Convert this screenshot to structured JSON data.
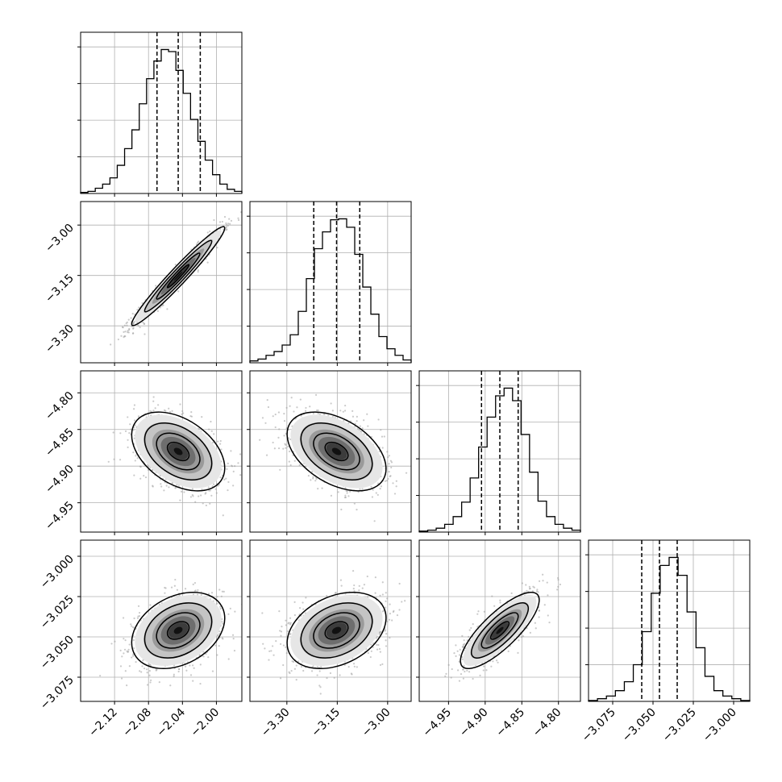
{
  "chart_data": {
    "type": "corner",
    "parameters": [
      {
        "index": 0,
        "range": [
          -2.16,
          -1.97
        ],
        "ticks": [
          -2.12,
          -2.08,
          -2.04,
          -2.0
        ],
        "tick_labels": [
          "−2.12",
          "−2.08",
          "−2.04",
          "−2.00"
        ],
        "median": -2.045,
        "q16": -2.07,
        "q84": -2.019,
        "hist": [
          1,
          2,
          5,
          9,
          15,
          27,
          43,
          61,
          86,
          110,
          127,
          138,
          136,
          118,
          96,
          71,
          50,
          32,
          18,
          9,
          4,
          2
        ]
      },
      {
        "index": 1,
        "range": [
          -3.41,
          -2.93
        ],
        "ticks": [
          -3.3,
          -3.15,
          -3.0
        ],
        "tick_labels": [
          "−3.30",
          "−3.15",
          "−3.00"
        ],
        "median": -3.152,
        "q16": -3.22,
        "q84": -3.083,
        "hist": [
          2,
          4,
          8,
          12,
          19,
          30,
          55,
          90,
          122,
          140,
          153,
          154,
          145,
          116,
          81,
          52,
          28,
          15,
          8,
          3
        ]
      },
      {
        "index": 2,
        "range": [
          -4.99,
          -4.77
        ],
        "ticks": [
          -4.95,
          -4.9,
          -4.85,
          -4.8
        ],
        "tick_labels": [
          "−4.95",
          "−4.90",
          "−4.85",
          "−4.80"
        ],
        "median": -4.88,
        "q16": -4.905,
        "q84": -4.855,
        "hist": [
          1,
          2,
          4,
          8,
          16,
          31,
          56,
          88,
          119,
          141,
          149,
          136,
          101,
          62,
          32,
          16,
          8,
          4,
          2
        ]
      },
      {
        "index": 3,
        "range": [
          -3.09,
          -2.99
        ],
        "ticks": [
          -3.075,
          -3.05,
          -3.025,
          -3.0
        ],
        "tick_labels": [
          "−3.075",
          "−3.050",
          "−3.025",
          "−3.000"
        ],
        "median": -3.046,
        "q16": -3.057,
        "q84": -3.035,
        "hist": [
          1,
          3,
          6,
          12,
          22,
          41,
          78,
          121,
          152,
          161,
          141,
          100,
          60,
          28,
          12,
          6,
          3,
          1
        ]
      }
    ],
    "pairs": [
      {
        "x": 0,
        "y": 1,
        "center": [
          -2.045,
          -3.152
        ],
        "correlation": 0.97
      },
      {
        "x": 0,
        "y": 2,
        "center": [
          -2.045,
          -4.88
        ],
        "correlation": -0.42
      },
      {
        "x": 1,
        "y": 2,
        "center": [
          -3.152,
          -4.88
        ],
        "correlation": -0.44
      },
      {
        "x": 0,
        "y": 3,
        "center": [
          -2.045,
          -3.046
        ],
        "correlation": 0.32
      },
      {
        "x": 1,
        "y": 3,
        "center": [
          -3.152,
          -3.046
        ],
        "correlation": 0.33
      },
      {
        "x": 2,
        "y": 3,
        "center": [
          -4.88,
          -3.046
        ],
        "correlation": 0.8
      }
    ],
    "quantiles": [
      0.16,
      0.5,
      0.84
    ],
    "grid": true,
    "colors": {
      "hist": "#000000",
      "scatter": "#9e9e9e",
      "grid": "#b0b0b0",
      "density": "#000000"
    }
  }
}
